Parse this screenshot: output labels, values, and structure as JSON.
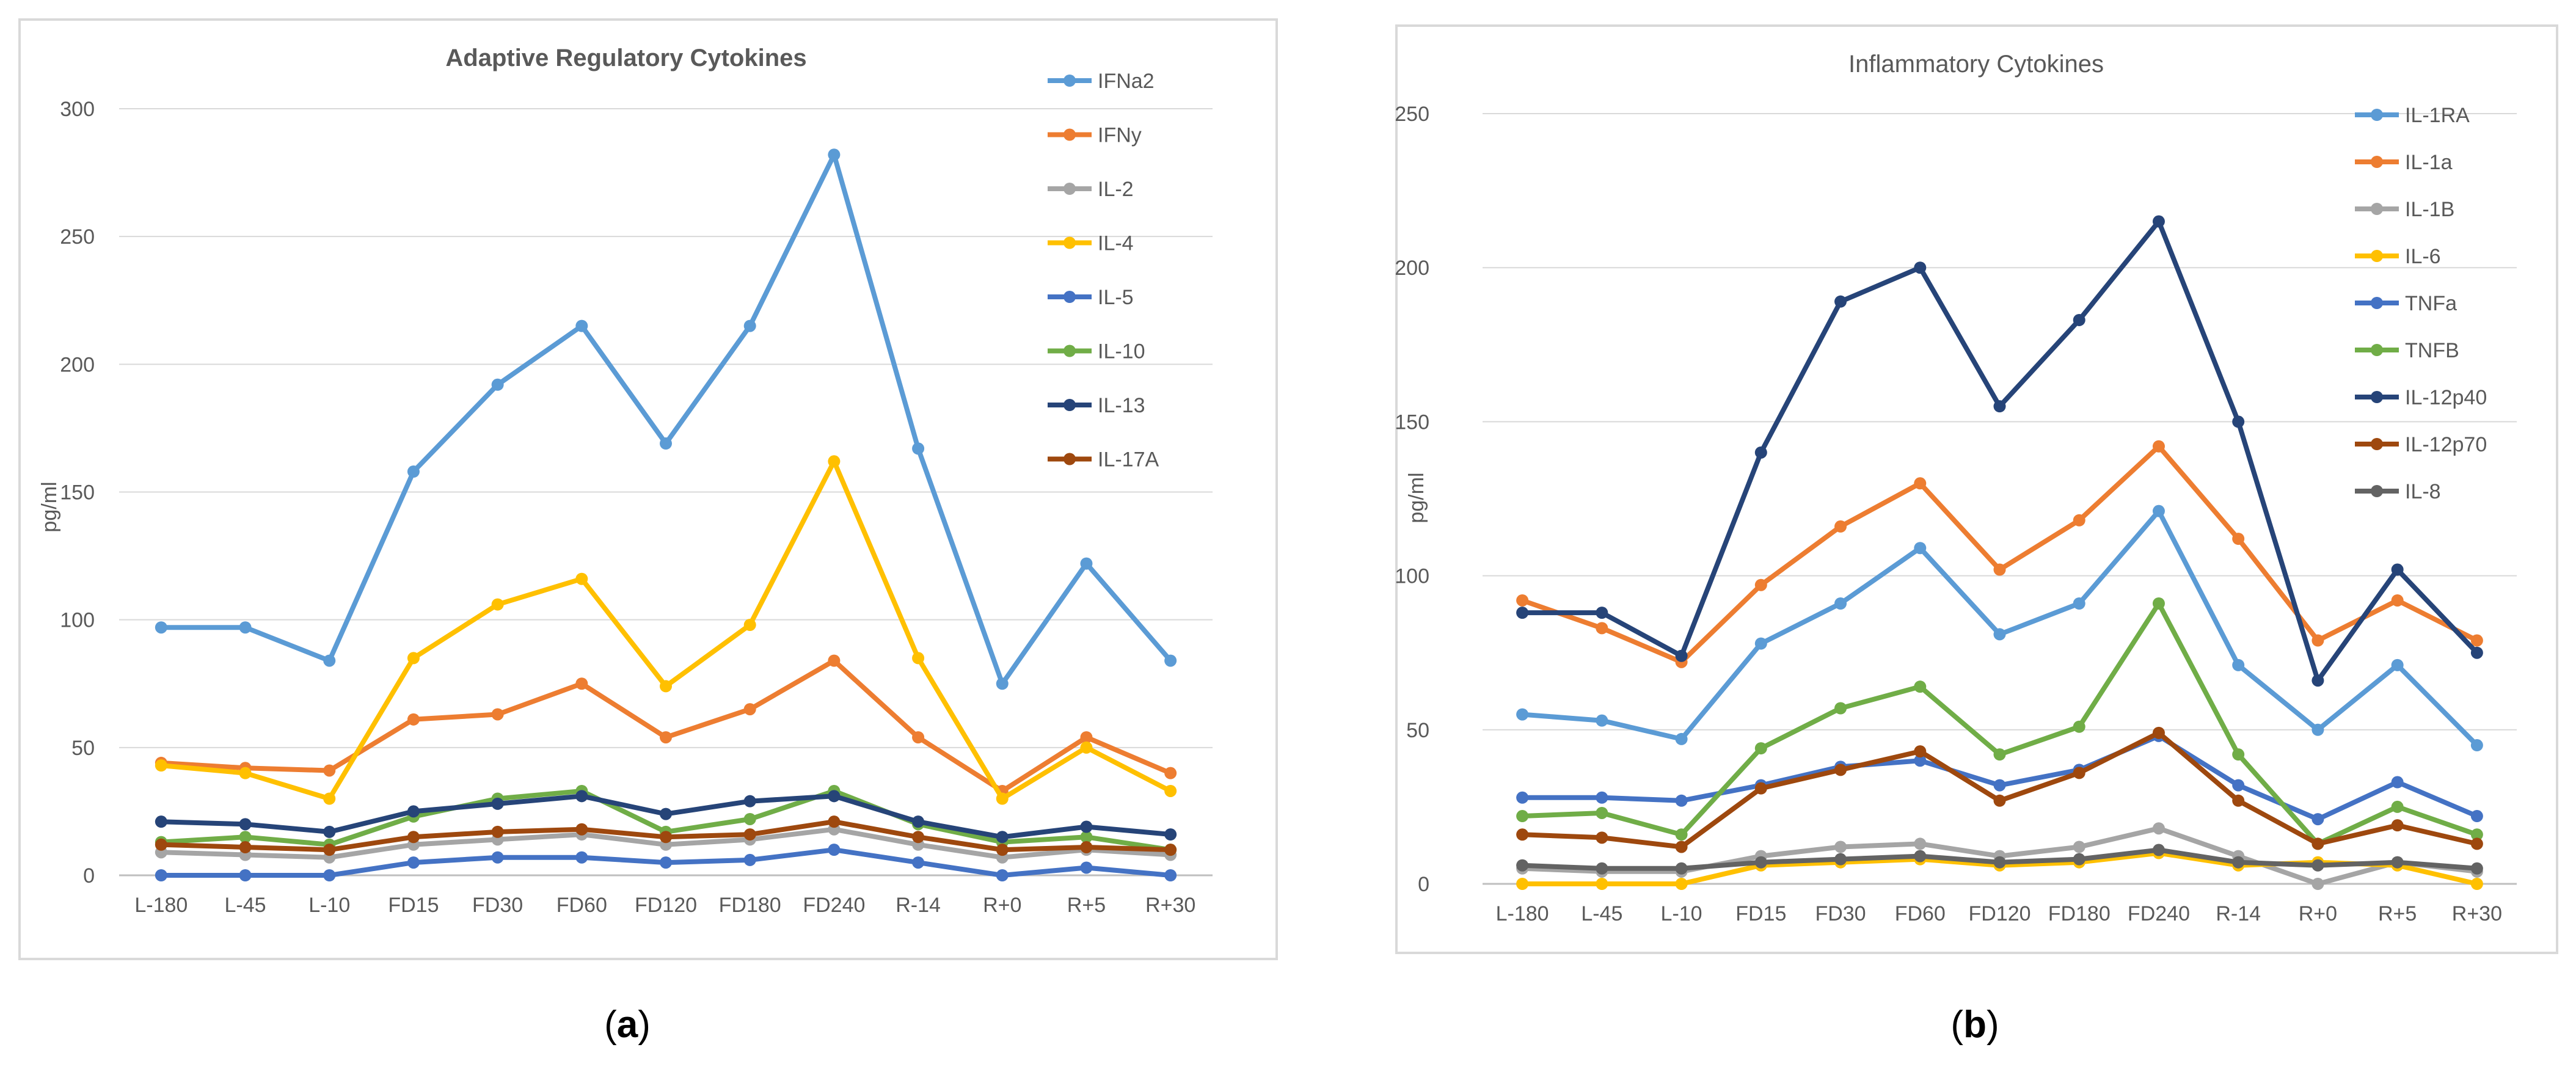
{
  "chart_data": [
    {
      "type": "line",
      "title": "Adaptive Regulatory Cytokines",
      "xlabel": "",
      "ylabel": "pg/ml",
      "panel_label": "a",
      "ylim": [
        0,
        300
      ],
      "yticks": [
        "0",
        "50",
        "100",
        "150",
        "200",
        "250",
        "300"
      ],
      "categories": [
        "L-180",
        "L-45",
        "L-10",
        "FD15",
        "FD30",
        "FD60",
        "FD120",
        "FD180",
        "FD240",
        "R-14",
        "R+0",
        "R+5",
        "R+30"
      ],
      "grid": true,
      "legend": "right",
      "series": [
        {
          "name": "IFNa2",
          "color": "#5b9bd5",
          "values": [
            97,
            97,
            84,
            158,
            192,
            215,
            169,
            215,
            282,
            167,
            75,
            122,
            84
          ]
        },
        {
          "name": "IFNy",
          "color": "#ed7d31",
          "values": [
            44,
            42,
            41,
            61,
            63,
            75,
            54,
            65,
            84,
            54,
            33,
            54,
            40
          ]
        },
        {
          "name": "IL-2",
          "color": "#a5a5a5",
          "values": [
            9,
            8,
            7,
            12,
            14,
            16,
            12,
            14,
            18,
            12,
            7,
            10,
            8
          ]
        },
        {
          "name": "IL-4",
          "color": "#ffc000",
          "values": [
            43,
            40,
            30,
            85,
            106,
            116,
            74,
            98,
            162,
            85,
            30,
            50,
            33
          ]
        },
        {
          "name": "IL-5",
          "color": "#4472c4",
          "values": [
            0,
            0,
            0,
            5,
            7,
            7,
            5,
            6,
            10,
            5,
            0,
            3,
            0
          ]
        },
        {
          "name": "IL-10",
          "color": "#70ad47",
          "values": [
            13,
            15,
            12,
            23,
            30,
            33,
            17,
            22,
            33,
            20,
            13,
            15,
            10
          ]
        },
        {
          "name": "IL-13",
          "color": "#264478",
          "values": [
            21,
            20,
            17,
            25,
            28,
            31,
            24,
            29,
            31,
            21,
            15,
            19,
            16
          ]
        },
        {
          "name": "IL-17A",
          "color": "#9e480e",
          "values": [
            12,
            11,
            10,
            15,
            17,
            18,
            15,
            16,
            21,
            15,
            10,
            11,
            10
          ]
        }
      ]
    },
    {
      "type": "line",
      "title": "Inflammatory Cytokines",
      "xlabel": "",
      "ylabel": "pg/ml",
      "panel_label": "b",
      "ylim": [
        0,
        250
      ],
      "yticks": [
        "0",
        "50",
        "100",
        "150",
        "200",
        "250"
      ],
      "categories": [
        "L-180",
        "L-45",
        "L-10",
        "FD15",
        "FD30",
        "FD60",
        "FD120",
        "FD180",
        "FD240",
        "R-14",
        "R+0",
        "R+5",
        "R+30"
      ],
      "grid": true,
      "legend": "right",
      "series": [
        {
          "name": "IL-1RA",
          "color": "#5b9bd5",
          "values": [
            55,
            53,
            47,
            78,
            91,
            109,
            81,
            91,
            121,
            71,
            50,
            71,
            45
          ]
        },
        {
          "name": "IL-1a",
          "color": "#ed7d31",
          "values": [
            92,
            83,
            72,
            97,
            116,
            130,
            102,
            118,
            142,
            112,
            79,
            92,
            79
          ]
        },
        {
          "name": "IL-1B",
          "color": "#a5a5a5",
          "values": [
            5,
            4,
            4,
            9,
            12,
            13,
            9,
            12,
            18,
            9,
            0,
            7,
            4
          ]
        },
        {
          "name": "IL-6",
          "color": "#ffc000",
          "values": [
            0,
            0,
            0,
            6,
            7,
            8,
            6,
            7,
            10,
            6,
            7,
            6,
            0
          ]
        },
        {
          "name": "TNFa",
          "color": "#4472c4",
          "values": [
            28,
            28,
            27,
            32,
            38,
            40,
            32,
            37,
            48,
            32,
            21,
            33,
            22
          ]
        },
        {
          "name": "TNFB",
          "color": "#70ad47",
          "values": [
            22,
            23,
            16,
            44,
            57,
            64,
            42,
            51,
            91,
            42,
            13,
            25,
            16
          ]
        },
        {
          "name": "IL-12p40",
          "color": "#264478",
          "values": [
            88,
            88,
            74,
            140,
            189,
            200,
            155,
            183,
            215,
            150,
            66,
            102,
            75
          ]
        },
        {
          "name": "IL-12p70",
          "color": "#9e480e",
          "values": [
            16,
            15,
            12,
            31,
            37,
            43,
            27,
            36,
            49,
            27,
            13,
            19,
            13
          ]
        },
        {
          "name": "IL-8",
          "color": "#636363",
          "values": [
            6,
            5,
            5,
            7,
            8,
            9,
            7,
            8,
            11,
            7,
            6,
            7,
            5
          ]
        }
      ]
    }
  ]
}
